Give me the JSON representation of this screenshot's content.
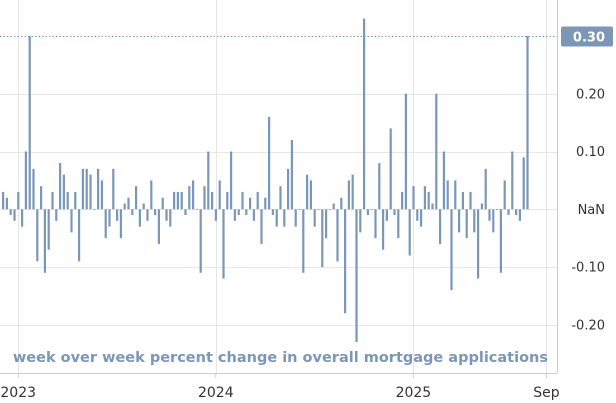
{
  "chart_data": {
    "type": "bar",
    "annotation": "week over week percent change in overall mortgage applications",
    "y_ticks": [
      "0.20",
      "0.10",
      "NaN",
      "-0.10",
      "-0.20"
    ],
    "y_tick_values": [
      0.2,
      0.1,
      0,
      -0.1,
      -0.2
    ],
    "x_ticks": [
      "2023",
      "2024",
      "2025",
      "Sep"
    ],
    "x_tick_indices": [
      4,
      56,
      108,
      143
    ],
    "last_value_label": "0.30",
    "last_value": 0.3,
    "ylim": [
      -0.235,
      0.345
    ],
    "grid": true,
    "bar_color": "#7b97b8",
    "values": [
      0.03,
      0.02,
      -0.01,
      -0.02,
      0.03,
      -0.03,
      0.1,
      0.3,
      0.07,
      -0.09,
      0.04,
      -0.11,
      -0.07,
      0.03,
      -0.02,
      0.08,
      0.06,
      0.03,
      -0.04,
      0.03,
      -0.09,
      0.07,
      0.07,
      0.06,
      0.0,
      0.07,
      0.05,
      -0.05,
      -0.03,
      0.07,
      -0.02,
      -0.05,
      0.01,
      0.02,
      -0.01,
      0.04,
      -0.03,
      0.01,
      -0.02,
      0.05,
      -0.01,
      -0.06,
      0.02,
      -0.02,
      -0.03,
      0.03,
      0.03,
      0.03,
      -0.01,
      0.04,
      0.05,
      0.0,
      -0.11,
      0.04,
      0.1,
      0.03,
      -0.02,
      0.05,
      -0.12,
      0.03,
      0.1,
      -0.02,
      -0.01,
      0.03,
      -0.01,
      0.02,
      -0.02,
      0.03,
      -0.06,
      0.02,
      0.16,
      -0.01,
      -0.03,
      0.04,
      -0.03,
      0.07,
      0.12,
      -0.03,
      0.0,
      -0.11,
      0.06,
      0.05,
      -0.03,
      0.0,
      -0.1,
      -0.05,
      0.0,
      0.01,
      -0.09,
      0.02,
      -0.18,
      0.05,
      0.06,
      -0.23,
      -0.04,
      0.33,
      -0.01,
      0.0,
      -0.05,
      0.08,
      -0.07,
      -0.02,
      0.14,
      -0.01,
      -0.05,
      0.03,
      0.2,
      -0.08,
      0.04,
      -0.02,
      -0.03,
      0.04,
      0.03,
      0.01,
      0.2,
      -0.06,
      0.1,
      0.05,
      -0.14,
      0.05,
      -0.04,
      0.03,
      -0.05,
      0.03,
      -0.04,
      -0.12,
      0.01,
      0.07,
      -0.02,
      -0.04,
      0.0,
      -0.11,
      0.05,
      -0.01,
      0.1,
      -0.01,
      -0.02,
      0.09,
      0.3
    ]
  }
}
